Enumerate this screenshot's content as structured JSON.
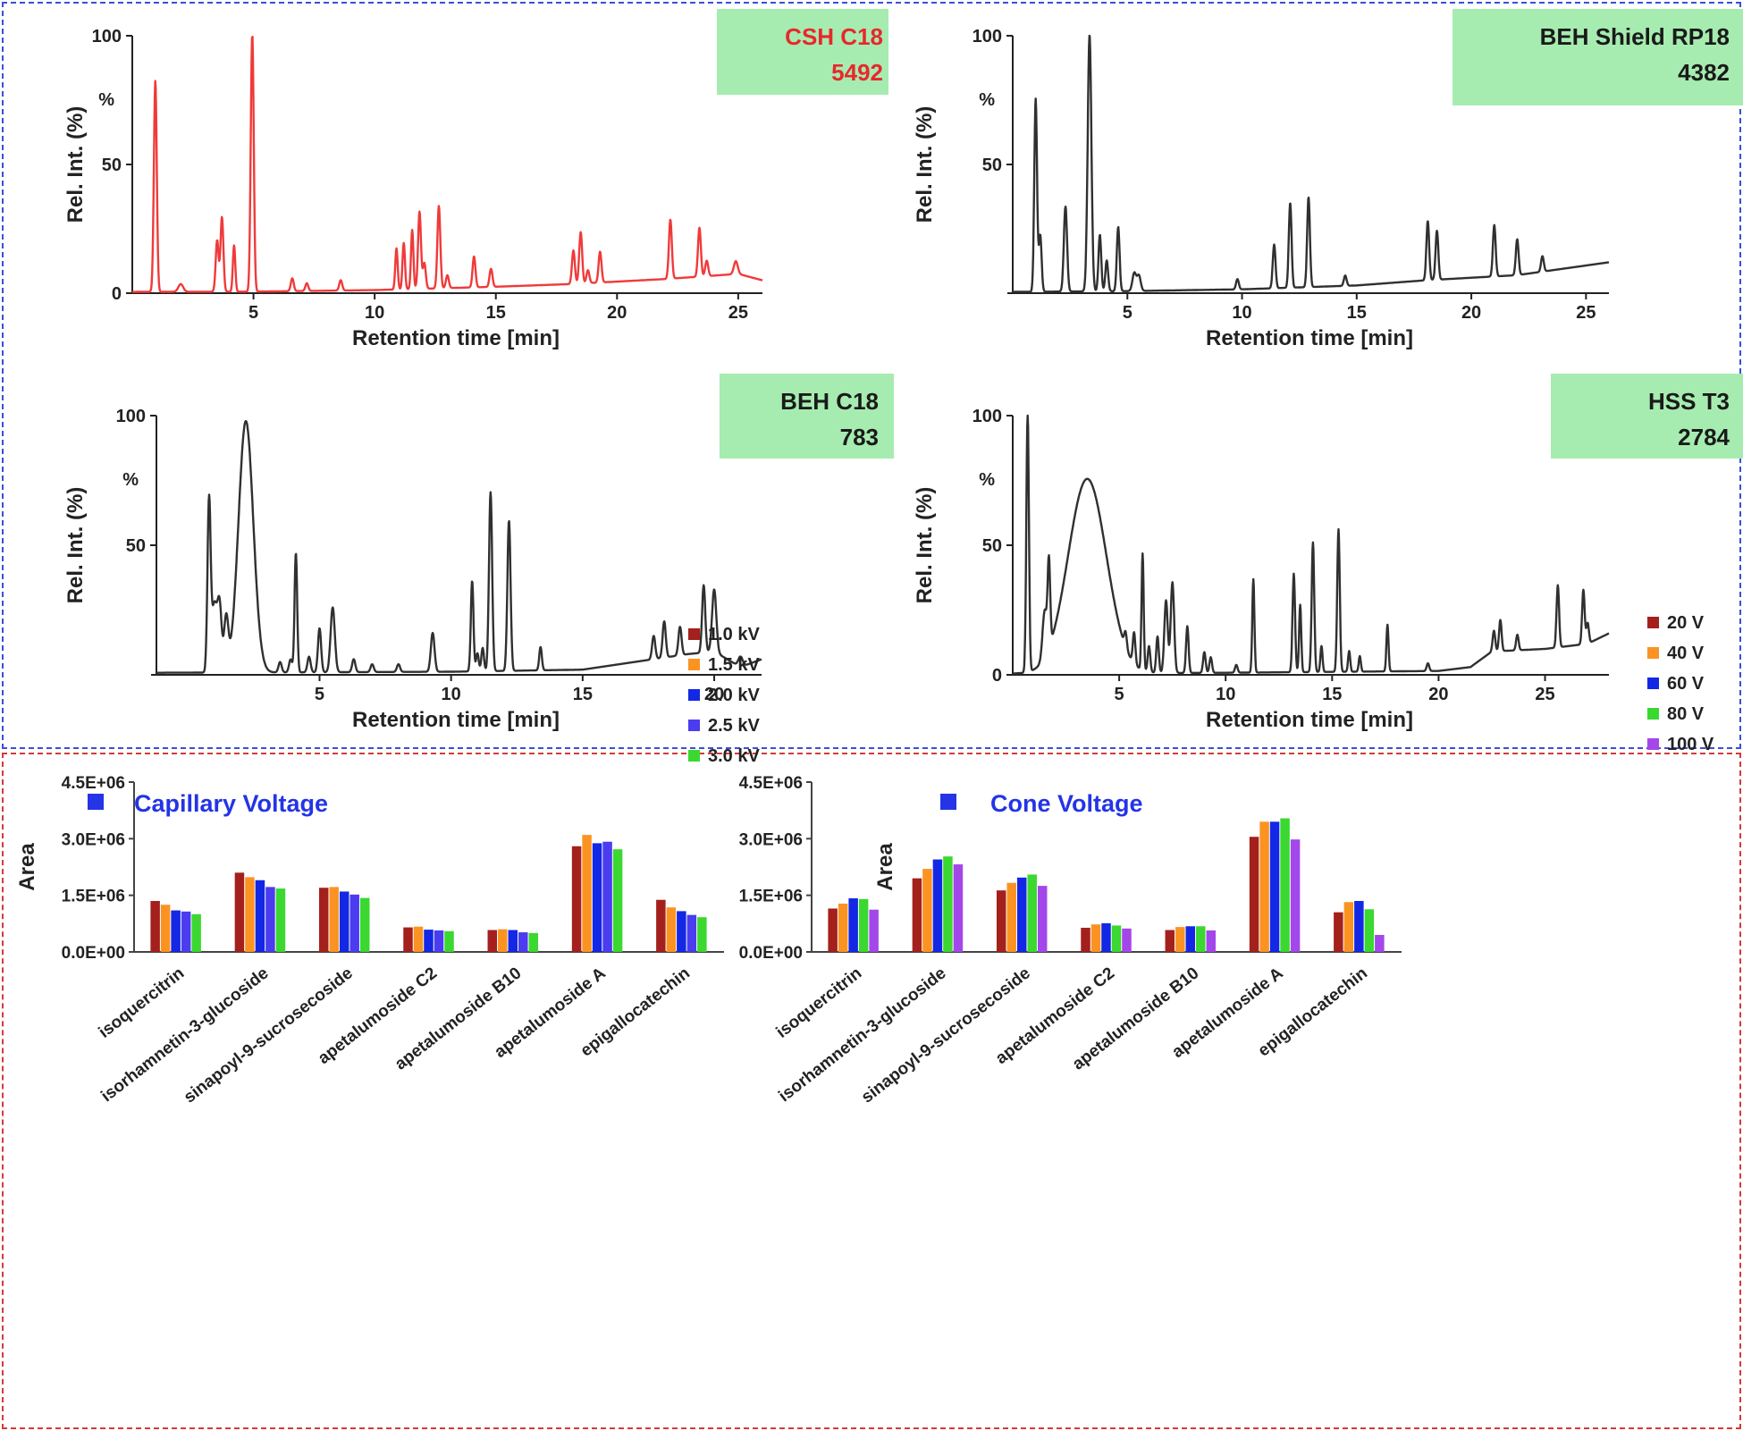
{
  "colors": {
    "top_border": "#3a4fd8",
    "bottom_border": "#d43a3a",
    "label_bg": "#a6ecb0",
    "highlight_red": "#e8282c",
    "trace_dark": "#303030",
    "title_blue": "#2434e6"
  },
  "chart_data": [
    {
      "type": "line",
      "id": "csh",
      "title_line1": "CSH C18",
      "title_line2": "5492",
      "title_color": "#e8282c",
      "line_color": "#f03a3a",
      "xlabel": "Retention time [min]",
      "ylabel": "Rel. Int. (%)",
      "y_unit": "%",
      "xlim": [
        0,
        26
      ],
      "ylim": [
        0,
        100
      ],
      "xticks": [
        5,
        10,
        15,
        20,
        25
      ],
      "yticks": [
        0,
        50,
        100
      ],
      "baseline": [
        [
          0,
          0.5
        ],
        [
          5,
          0.6
        ],
        [
          10,
          1.2
        ],
        [
          15,
          2.5
        ],
        [
          18,
          3.5
        ],
        [
          22,
          5.5
        ],
        [
          25,
          7.5
        ],
        [
          26,
          5
        ]
      ],
      "peaks": [
        [
          0.95,
          82,
          0.06
        ],
        [
          2,
          3,
          0.1
        ],
        [
          3.5,
          20,
          0.06
        ],
        [
          3.7,
          29,
          0.06
        ],
        [
          4.2,
          18,
          0.05
        ],
        [
          4.95,
          100,
          0.06
        ],
        [
          6.6,
          5,
          0.06
        ],
        [
          7.2,
          3,
          0.06
        ],
        [
          8.6,
          4,
          0.06
        ],
        [
          10.9,
          16,
          0.05
        ],
        [
          11.2,
          18,
          0.05
        ],
        [
          11.55,
          23,
          0.05
        ],
        [
          11.85,
          30,
          0.06
        ],
        [
          12.05,
          10,
          0.06
        ],
        [
          12.65,
          32,
          0.06
        ],
        [
          13,
          5,
          0.06
        ],
        [
          14.1,
          12,
          0.06
        ],
        [
          14.8,
          7,
          0.06
        ],
        [
          18.2,
          13,
          0.06
        ],
        [
          18.5,
          20,
          0.06
        ],
        [
          18.8,
          5,
          0.06
        ],
        [
          19.3,
          12,
          0.06
        ],
        [
          22.2,
          23,
          0.06
        ],
        [
          23.4,
          19,
          0.06
        ],
        [
          23.7,
          6,
          0.06
        ],
        [
          24.9,
          5,
          0.08
        ]
      ]
    },
    {
      "type": "line",
      "id": "shield",
      "title_line1": "BEH Shield RP18",
      "title_line2": "4382",
      "title_color": "#1a1a1a",
      "line_color": "#303030",
      "xlabel": "Retention time [min]",
      "ylabel": "Rel. Int. (%)",
      "y_unit": "%",
      "xlim": [
        0,
        26
      ],
      "ylim": [
        0,
        100
      ],
      "xticks": [
        5,
        10,
        15,
        20,
        25
      ],
      "yticks": [
        50,
        100
      ],
      "baseline": [
        [
          0,
          0.5
        ],
        [
          5,
          0.8
        ],
        [
          10,
          1.5
        ],
        [
          15,
          3
        ],
        [
          18,
          5
        ],
        [
          22,
          7
        ],
        [
          26,
          12
        ]
      ],
      "peaks": [
        [
          1,
          75,
          0.06
        ],
        [
          1.2,
          22,
          0.06
        ],
        [
          2.3,
          33,
          0.07
        ],
        [
          3.35,
          100,
          0.08
        ],
        [
          3.8,
          22,
          0.06
        ],
        [
          4.1,
          12,
          0.06
        ],
        [
          4.6,
          25,
          0.06
        ],
        [
          5.3,
          7,
          0.08
        ],
        [
          5.5,
          6,
          0.08
        ],
        [
          9.8,
          4,
          0.06
        ],
        [
          11.4,
          17,
          0.06
        ],
        [
          12.1,
          33,
          0.06
        ],
        [
          12.9,
          35,
          0.06
        ],
        [
          14.5,
          4,
          0.06
        ],
        [
          18.1,
          23,
          0.06
        ],
        [
          18.5,
          19,
          0.06
        ],
        [
          21,
          20,
          0.06
        ],
        [
          22,
          14,
          0.06
        ],
        [
          23.1,
          6,
          0.06
        ]
      ]
    },
    {
      "type": "line",
      "id": "behc18",
      "title_line1": "BEH C18",
      "title_line2": "783",
      "title_color": "#1a1a1a",
      "line_color": "#303030",
      "xlabel": "Retention time [min]",
      "ylabel": "Rel. Int. (%)",
      "y_unit": "%",
      "xlim": [
        -1.2,
        21.8
      ],
      "ylim": [
        0,
        100
      ],
      "xticks": [
        5,
        10,
        15,
        20
      ],
      "yticks": [
        50,
        100
      ],
      "baseline": [
        [
          -1.2,
          0.8
        ],
        [
          5,
          1
        ],
        [
          10,
          1.2
        ],
        [
          15,
          2
        ],
        [
          17,
          5
        ],
        [
          19,
          8
        ],
        [
          20,
          9
        ],
        [
          21,
          3
        ],
        [
          21.8,
          6
        ]
      ],
      "peaks": [
        [
          0.8,
          65,
          0.06
        ],
        [
          1,
          26,
          0.1
        ],
        [
          1.2,
          25,
          0.08
        ],
        [
          1.45,
          20,
          0.08
        ],
        [
          2.2,
          97,
          0.28
        ],
        [
          3.5,
          4,
          0.06
        ],
        [
          3.9,
          5,
          0.06
        ],
        [
          4.1,
          46,
          0.05
        ],
        [
          4.6,
          6,
          0.06
        ],
        [
          5,
          17,
          0.06
        ],
        [
          5.5,
          25,
          0.08
        ],
        [
          6.3,
          5,
          0.06
        ],
        [
          7,
          3,
          0.06
        ],
        [
          8,
          3,
          0.06
        ],
        [
          9.3,
          15,
          0.07
        ],
        [
          10.8,
          35,
          0.05
        ],
        [
          11,
          7,
          0.05
        ],
        [
          11.2,
          9,
          0.05
        ],
        [
          11.5,
          69,
          0.06
        ],
        [
          12.2,
          58,
          0.06
        ],
        [
          13.4,
          9,
          0.05
        ],
        [
          17.7,
          9,
          0.06
        ],
        [
          18.1,
          14,
          0.06
        ],
        [
          18.7,
          11,
          0.06
        ],
        [
          19.6,
          26,
          0.06
        ],
        [
          20,
          24,
          0.08
        ],
        [
          21,
          4,
          0.08
        ]
      ]
    },
    {
      "type": "line",
      "id": "hss",
      "title_line1": "HSS T3",
      "title_line2": "2784",
      "title_color": "#1a1a1a",
      "line_color": "#303030",
      "xlabel": "Retention time [min]",
      "ylabel": "Rel. Int. (%)",
      "y_unit": "%",
      "xlim": [
        0,
        28
      ],
      "ylim": [
        0,
        100
      ],
      "xticks": [
        5,
        10,
        15,
        20,
        25
      ],
      "yticks": [
        0,
        50,
        100
      ],
      "baseline": [
        [
          0,
          0.5
        ],
        [
          10,
          0.8
        ],
        [
          20,
          1.5
        ],
        [
          21.5,
          3
        ],
        [
          22.5,
          9
        ],
        [
          25,
          10
        ],
        [
          27,
          12
        ],
        [
          28,
          16
        ]
      ],
      "peaks": [
        [
          0.7,
          100,
          0.06
        ],
        [
          1.5,
          18,
          0.1
        ],
        [
          1.7,
          33,
          0.06
        ],
        [
          3.5,
          75,
          0.9
        ],
        [
          5.3,
          6,
          0.06
        ],
        [
          5.7,
          12,
          0.06
        ],
        [
          6.1,
          45,
          0.05
        ],
        [
          6.4,
          10,
          0.06
        ],
        [
          6.8,
          14,
          0.06
        ],
        [
          7.2,
          28,
          0.08
        ],
        [
          7.5,
          35,
          0.08
        ],
        [
          8.2,
          18,
          0.06
        ],
        [
          9,
          8,
          0.06
        ],
        [
          9.3,
          6,
          0.06
        ],
        [
          10.5,
          3,
          0.06
        ],
        [
          11.3,
          36,
          0.05
        ],
        [
          13.2,
          38,
          0.06
        ],
        [
          13.5,
          26,
          0.05
        ],
        [
          14.1,
          50,
          0.06
        ],
        [
          14.5,
          10,
          0.05
        ],
        [
          15.3,
          55,
          0.06
        ],
        [
          15.8,
          8,
          0.05
        ],
        [
          16.3,
          6,
          0.05
        ],
        [
          17.6,
          18,
          0.05
        ],
        [
          19.5,
          3,
          0.06
        ],
        [
          22.6,
          8,
          0.06
        ],
        [
          22.9,
          12,
          0.06
        ],
        [
          23.7,
          6,
          0.06
        ],
        [
          25.6,
          24,
          0.06
        ],
        [
          26.8,
          21,
          0.06
        ],
        [
          27,
          8,
          0.06
        ]
      ]
    },
    {
      "type": "bar",
      "id": "capillary",
      "title": "Capillary Voltage",
      "ylabel": "Area",
      "ylim": [
        0,
        4500000
      ],
      "yticks": [
        "0.0E+00",
        "1.5E+06",
        "3.0E+06",
        "4.5E+06"
      ],
      "ytick_values": [
        0,
        1500000,
        3000000,
        4500000
      ],
      "categories": [
        "isoquercitrin",
        "isorhamnetin-3-glucoside",
        "sinapoyl-9-sucrosecoside",
        "apetalumoside C2",
        "apetalumoside B10",
        "apetalumoside A",
        "epigallocatechin"
      ],
      "series": [
        {
          "name": "1.0 kV",
          "color": "#a3201d",
          "values": [
            1350000,
            2100000,
            1700000,
            650000,
            580000,
            2800000,
            1380000
          ]
        },
        {
          "name": "1.5 kV",
          "color": "#fb9323",
          "values": [
            1250000,
            1980000,
            1720000,
            670000,
            600000,
            3100000,
            1180000
          ]
        },
        {
          "name": "2.0 kV",
          "color": "#1228e4",
          "values": [
            1100000,
            1900000,
            1600000,
            590000,
            580000,
            2880000,
            1080000
          ]
        },
        {
          "name": "2.5 kV",
          "color": "#4b3cf0",
          "values": [
            1070000,
            1720000,
            1520000,
            570000,
            520000,
            2920000,
            980000
          ]
        },
        {
          "name": "3.0 kV",
          "color": "#3ad830",
          "values": [
            1000000,
            1680000,
            1430000,
            550000,
            500000,
            2720000,
            920000
          ]
        }
      ]
    },
    {
      "type": "bar",
      "id": "cone",
      "title": "Cone Voltage",
      "ylabel": "Area",
      "ylim": [
        0,
        4500000
      ],
      "yticks": [
        "0.0E+00",
        "1.5E+06",
        "3.0E+06",
        "4.5E+06"
      ],
      "ytick_values": [
        0,
        1500000,
        3000000,
        4500000
      ],
      "categories": [
        "isoquercitrin",
        "isorhamnetin-3-glucoside",
        "sinapoyl-9-sucrosecoside",
        "apetalumoside C2",
        "apetalumoside B10",
        "apetalumoside A",
        "epigallocatechin"
      ],
      "series": [
        {
          "name": "20 V",
          "color": "#a3201d",
          "values": [
            1150000,
            1950000,
            1630000,
            640000,
            580000,
            3050000,
            1050000
          ]
        },
        {
          "name": "40 V",
          "color": "#fb9323",
          "values": [
            1280000,
            2200000,
            1830000,
            730000,
            660000,
            3450000,
            1320000
          ]
        },
        {
          "name": "60 V",
          "color": "#1228e4",
          "values": [
            1420000,
            2450000,
            1970000,
            760000,
            680000,
            3450000,
            1350000
          ]
        },
        {
          "name": "80 V",
          "color": "#3ad830",
          "values": [
            1400000,
            2530000,
            2050000,
            700000,
            680000,
            3540000,
            1130000
          ]
        },
        {
          "name": "100 V",
          "color": "#a347ea",
          "values": [
            1120000,
            2320000,
            1750000,
            620000,
            570000,
            2980000,
            450000
          ]
        }
      ]
    }
  ]
}
